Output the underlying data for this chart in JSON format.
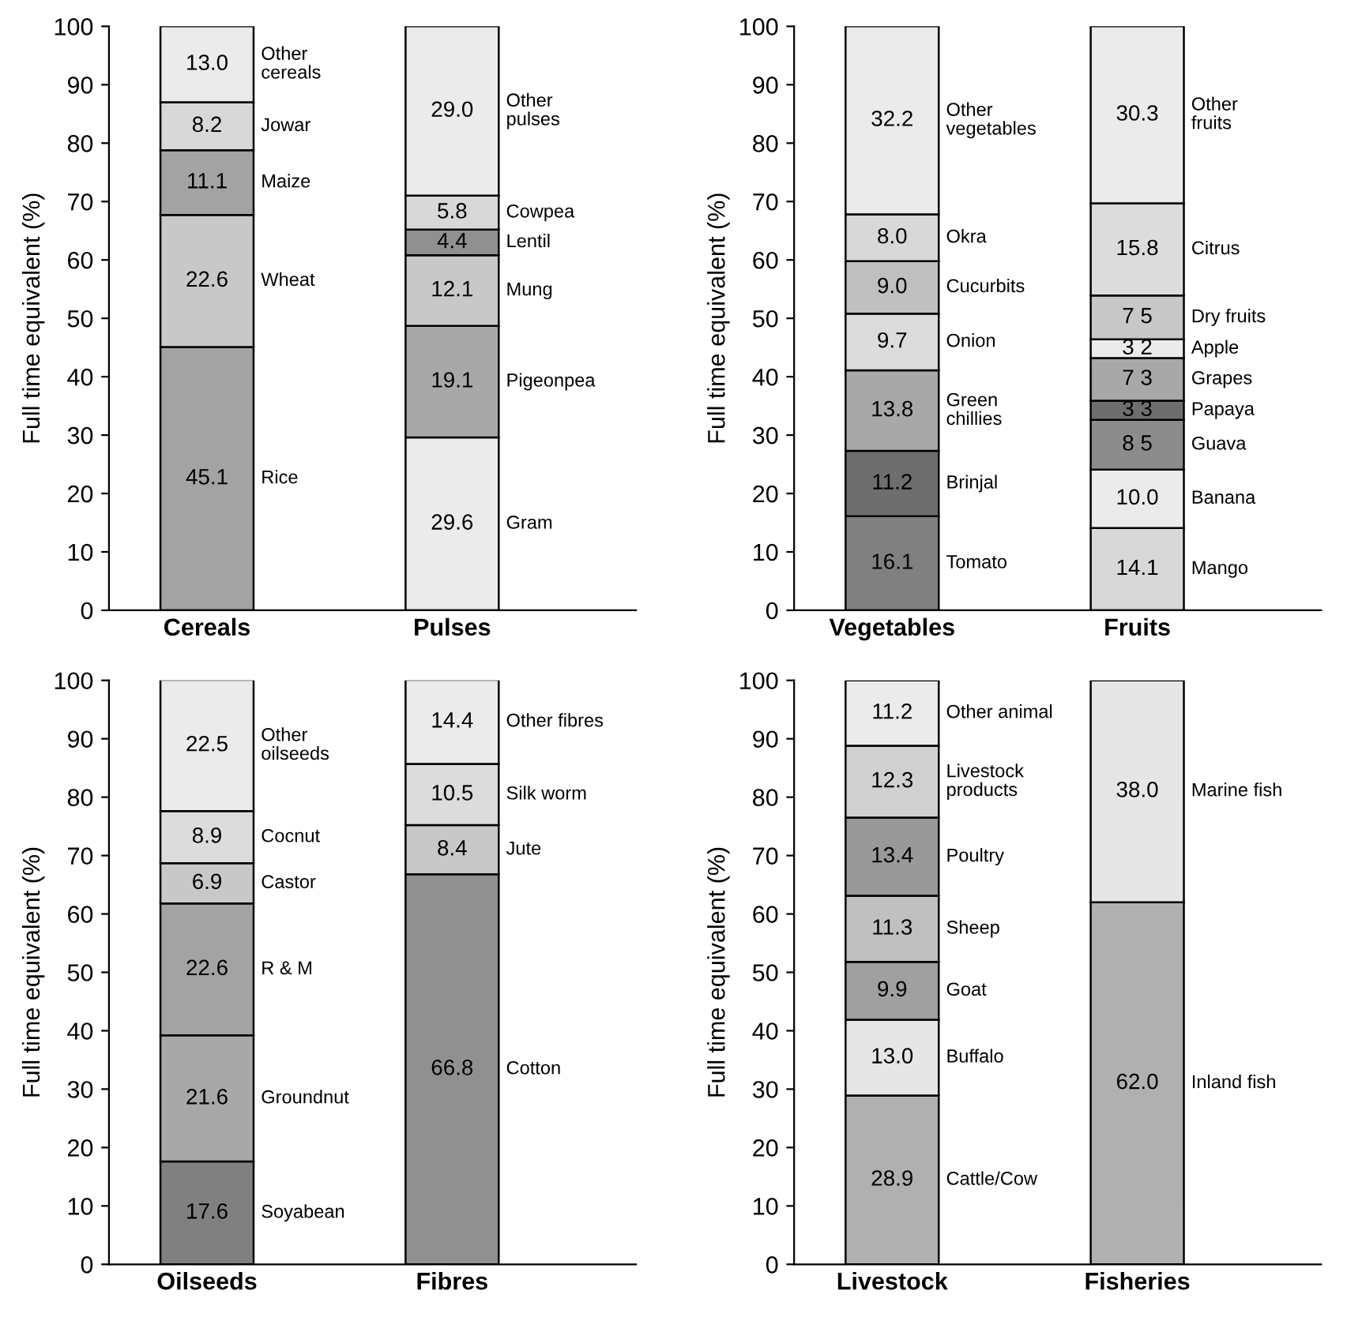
{
  "chart_data": [
    {
      "type": "bar",
      "stacked": true,
      "categories": [
        "Cereals",
        "Pulses"
      ],
      "ylabel": "Full time equivalent (%)",
      "ylim": [
        0,
        100
      ],
      "yticks": [
        0,
        10,
        20,
        30,
        40,
        50,
        60,
        70,
        80,
        90,
        100
      ],
      "grid": false,
      "series": [
        {
          "name": "Rice",
          "color": "#a3a3a3",
          "values": [
            45.1,
            null
          ],
          "value_labels": [
            "45.1",
            null
          ]
        },
        {
          "name": "Wheat",
          "color": "#c8c8c8",
          "values": [
            22.6,
            null
          ],
          "value_labels": [
            "22.6",
            null
          ]
        },
        {
          "name": "Maize",
          "color": "#a3a3a3",
          "values": [
            11.1,
            null
          ],
          "value_labels": [
            "11.1",
            null
          ]
        },
        {
          "name": "Jowar",
          "color": "#d8d8d8",
          "values": [
            8.2,
            null
          ],
          "value_labels": [
            "8.2",
            null
          ]
        },
        {
          "name": "Other\ncereals",
          "color": "#ebebeb",
          "values": [
            13.0,
            null
          ],
          "value_labels": [
            "13.0",
            null
          ]
        },
        {
          "name": "Gram",
          "color": "#ebebeb",
          "values": [
            null,
            29.6
          ],
          "value_labels": [
            null,
            "29.6"
          ]
        },
        {
          "name": "Pigeonpea",
          "color": "#a8a8a8",
          "values": [
            null,
            19.1
          ],
          "value_labels": [
            null,
            "19.1"
          ]
        },
        {
          "name": "Mung",
          "color": "#c8c8c8",
          "values": [
            null,
            12.1
          ],
          "value_labels": [
            null,
            "12.1"
          ]
        },
        {
          "name": "Lentil",
          "color": "#909090",
          "values": [
            null,
            4.4
          ],
          "value_labels": [
            null,
            "4.4"
          ]
        },
        {
          "name": "Cowpea",
          "color": "#d8d8d8",
          "values": [
            null,
            5.8
          ],
          "value_labels": [
            null,
            "5.8"
          ]
        },
        {
          "name": "Other\npulses",
          "color": "#ebebeb",
          "values": [
            null,
            29.0
          ],
          "value_labels": [
            null,
            "29.0"
          ]
        }
      ]
    },
    {
      "type": "bar",
      "stacked": true,
      "categories": [
        "Vegetables",
        "Fruits"
      ],
      "ylabel": "Full time equivalent (%)",
      "ylim": [
        0,
        100
      ],
      "yticks": [
        0,
        10,
        20,
        30,
        40,
        50,
        60,
        70,
        80,
        90,
        100
      ],
      "grid": false,
      "series": [
        {
          "name": "Tomato",
          "color": "#808080",
          "values": [
            16.1,
            null
          ],
          "value_labels": [
            "16.1",
            null
          ]
        },
        {
          "name": "Brinjal",
          "color": "#6e6e6e",
          "values": [
            11.2,
            null
          ],
          "value_labels": [
            "11.2",
            null
          ]
        },
        {
          "name": "Green\nchillies",
          "color": "#a8a8a8",
          "values": [
            13.8,
            null
          ],
          "value_labels": [
            "13.8",
            null
          ]
        },
        {
          "name": "Onion",
          "color": "#dcdcdc",
          "values": [
            9.7,
            null
          ],
          "value_labels": [
            "9.7",
            null
          ]
        },
        {
          "name": "Cucurbits",
          "color": "#c0c0c0",
          "values": [
            9.0,
            null
          ],
          "value_labels": [
            "9.0",
            null
          ]
        },
        {
          "name": "Okra",
          "color": "#d8d8d8",
          "values": [
            8.0,
            null
          ],
          "value_labels": [
            "8.0",
            null
          ]
        },
        {
          "name": "Other\nvegetables",
          "color": "#ebebeb",
          "values": [
            32.2,
            null
          ],
          "value_labels": [
            "32.2",
            null
          ]
        },
        {
          "name": "Mango",
          "color": "#d8d8d8",
          "values": [
            null,
            14.1
          ],
          "value_labels": [
            null,
            "14.1"
          ]
        },
        {
          "name": "Banana",
          "color": "#ebebeb",
          "values": [
            null,
            10.0
          ],
          "value_labels": [
            null,
            "10.0"
          ]
        },
        {
          "name": "Guava",
          "color": "#8c8c8c",
          "values": [
            null,
            8.5
          ],
          "value_labels": [
            null,
            "8 5"
          ]
        },
        {
          "name": "Papaya",
          "color": "#6e6e6e",
          "values": [
            null,
            3.3
          ],
          "value_labels": [
            null,
            "3 3"
          ]
        },
        {
          "name": "Grapes",
          "color": "#a8a8a8",
          "values": [
            null,
            7.3
          ],
          "value_labels": [
            null,
            "7 3"
          ]
        },
        {
          "name": "Apple",
          "color": "#ebebeb",
          "values": [
            null,
            3.2
          ],
          "value_labels": [
            null,
            "3 2"
          ]
        },
        {
          "name": "Dry fruits",
          "color": "#c8c8c8",
          "values": [
            null,
            7.5
          ],
          "value_labels": [
            null,
            "7 5"
          ]
        },
        {
          "name": "Citrus",
          "color": "#dcdcdc",
          "values": [
            null,
            15.8
          ],
          "value_labels": [
            null,
            "15.8"
          ]
        },
        {
          "name": "Other\nfruits",
          "color": "#ebebeb",
          "values": [
            null,
            30.3
          ],
          "value_labels": [
            null,
            "30.3"
          ]
        }
      ]
    },
    {
      "type": "bar",
      "stacked": true,
      "categories": [
        "Oilseeds",
        "Fibres"
      ],
      "ylabel": "Full time equivalent (%)",
      "ylim": [
        0,
        100
      ],
      "yticks": [
        0,
        10,
        20,
        30,
        40,
        50,
        60,
        70,
        80,
        90,
        100
      ],
      "grid": false,
      "series": [
        {
          "name": "Soyabean",
          "color": "#808080",
          "values": [
            17.6,
            null
          ],
          "value_labels": [
            "17.6",
            null
          ]
        },
        {
          "name": "Groundnut",
          "color": "#a8a8a8",
          "values": [
            21.6,
            null
          ],
          "value_labels": [
            "21.6",
            null
          ]
        },
        {
          "name": "R & M",
          "color": "#a3a3a3",
          "values": [
            22.6,
            null
          ],
          "value_labels": [
            "22.6",
            null
          ]
        },
        {
          "name": "Castor",
          "color": "#c8c8c8",
          "values": [
            6.9,
            null
          ],
          "value_labels": [
            "6.9",
            null
          ]
        },
        {
          "name": "Cocnut",
          "color": "#dcdcdc",
          "values": [
            8.9,
            null
          ],
          "value_labels": [
            "8.9",
            null
          ]
        },
        {
          "name": "Other\noilseeds",
          "color": "#ebebeb",
          "values": [
            22.5,
            null
          ],
          "value_labels": [
            "22.5",
            null
          ]
        },
        {
          "name": "Cotton",
          "color": "#909090",
          "values": [
            null,
            66.8
          ],
          "value_labels": [
            null,
            "66.8"
          ]
        },
        {
          "name": "Jute",
          "color": "#c8c8c8",
          "values": [
            null,
            8.4
          ],
          "value_labels": [
            null,
            "8.4"
          ]
        },
        {
          "name": "Silk worm",
          "color": "#dcdcdc",
          "values": [
            null,
            10.5
          ],
          "value_labels": [
            null,
            "10.5"
          ]
        },
        {
          "name": "Other fibres",
          "color": "#ebebeb",
          "values": [
            null,
            14.4
          ],
          "value_labels": [
            null,
            "14.4"
          ]
        }
      ]
    },
    {
      "type": "bar",
      "stacked": true,
      "categories": [
        "Livestock",
        "Fisheries"
      ],
      "ylabel": "Full time equivalent (%)",
      "ylim": [
        0,
        100
      ],
      "yticks": [
        0,
        10,
        20,
        30,
        40,
        50,
        60,
        70,
        80,
        90,
        100
      ],
      "grid": false,
      "series": [
        {
          "name": "Cattle/Cow",
          "color": "#b0b0b0",
          "values": [
            28.9,
            null
          ],
          "value_labels": [
            "28.9",
            null
          ]
        },
        {
          "name": "Buffalo",
          "color": "#e6e6e6",
          "values": [
            13.0,
            null
          ],
          "value_labels": [
            "13.0",
            null
          ]
        },
        {
          "name": "Goat",
          "color": "#a0a0a0",
          "values": [
            9.9,
            null
          ],
          "value_labels": [
            "9.9",
            null
          ]
        },
        {
          "name": "Sheep",
          "color": "#c0c0c0",
          "values": [
            11.3,
            null
          ],
          "value_labels": [
            "11.3",
            null
          ]
        },
        {
          "name": "Poultry",
          "color": "#999999",
          "values": [
            13.4,
            null
          ],
          "value_labels": [
            "13.4",
            null
          ]
        },
        {
          "name": "Livestock\nproducts",
          "color": "#d0d0d0",
          "values": [
            12.3,
            null
          ],
          "value_labels": [
            "12.3",
            null
          ]
        },
        {
          "name": "Other animal",
          "color": "#ebebeb",
          "values": [
            11.2,
            null
          ],
          "value_labels": [
            "11.2",
            null
          ]
        },
        {
          "name": "Inland fish",
          "color": "#b0b0b0",
          "values": [
            null,
            62.0
          ],
          "value_labels": [
            null,
            "62.0"
          ]
        },
        {
          "name": "Marine fish",
          "color": "#e6e6e6",
          "values": [
            null,
            38.0
          ],
          "value_labels": [
            null,
            "38.0"
          ]
        }
      ]
    }
  ]
}
